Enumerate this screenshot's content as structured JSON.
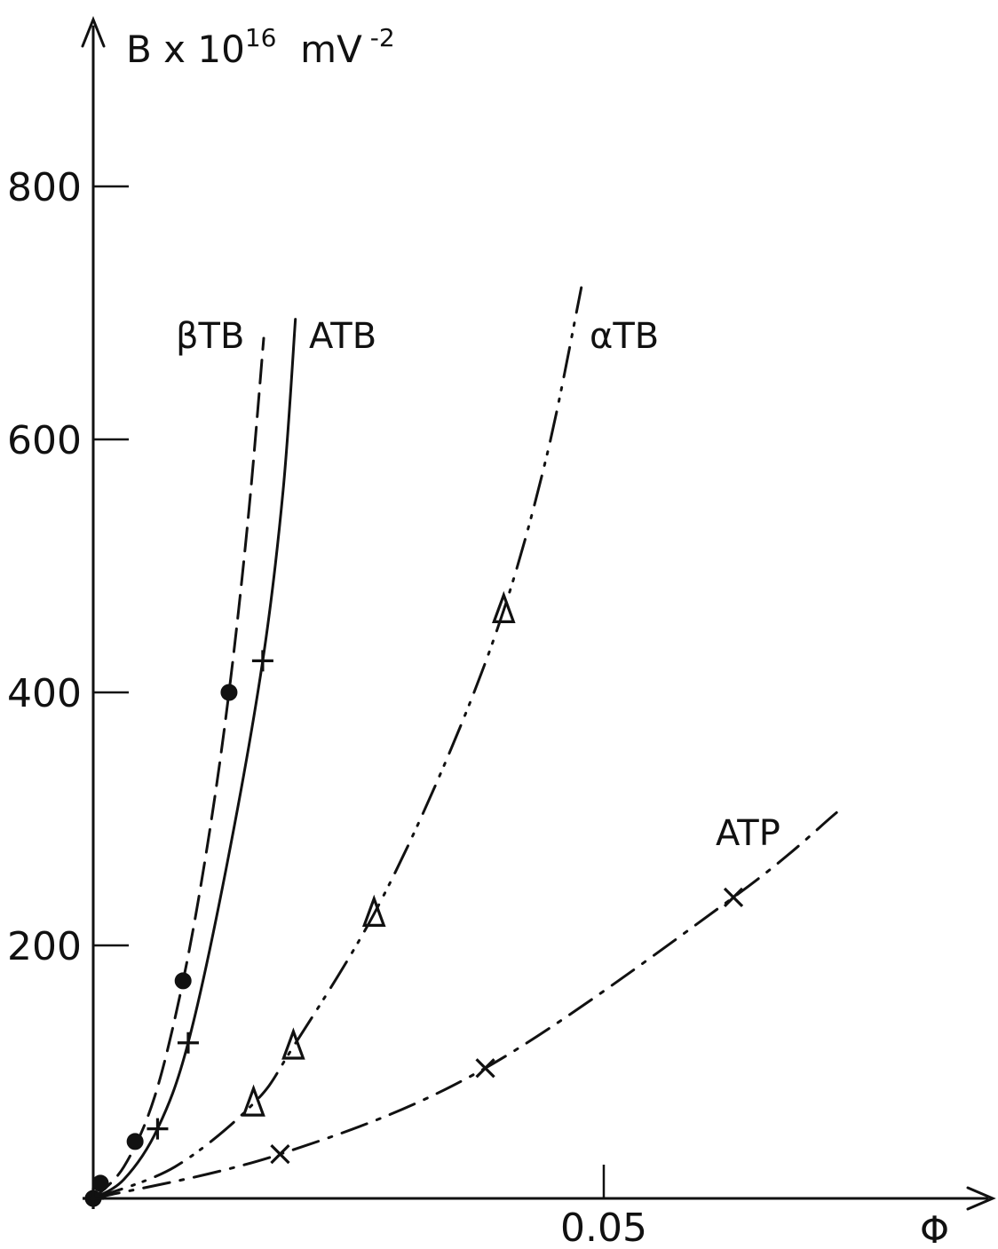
{
  "chart_data": {
    "type": "line",
    "title": "",
    "xlabel": "Φ",
    "ylabel": "B x 10^16 mV^-2",
    "ylabel_parts": {
      "base": "B x 10",
      "exp": "16",
      "unit": " mV",
      "unit_exp": "-2"
    },
    "xlim": [
      0,
      0.0745
    ],
    "ylim": [
      0,
      900
    ],
    "x_ticks": [
      {
        "value": 0.05,
        "label": "0.05"
      }
    ],
    "y_ticks": [
      {
        "value": 200,
        "label": "200"
      },
      {
        "value": 400,
        "label": "400"
      },
      {
        "value": 600,
        "label": "600"
      },
      {
        "value": 800,
        "label": "800"
      }
    ],
    "grid": false,
    "legend": "none",
    "series": [
      {
        "name": "βTB",
        "line_style": "dashed",
        "marker": "filled-circle",
        "points": [
          [
            0,
            0
          ],
          [
            0.0007,
            12
          ],
          [
            0.0041,
            45
          ],
          [
            0.0088,
            172
          ],
          [
            0.0133,
            400
          ]
        ],
        "curve": [
          [
            0,
            0
          ],
          [
            0.003,
            25
          ],
          [
            0.006,
            80
          ],
          [
            0.0088,
            172
          ],
          [
            0.0112,
            280
          ],
          [
            0.0133,
            400
          ],
          [
            0.0152,
            540
          ],
          [
            0.0167,
            680
          ]
        ]
      },
      {
        "name": "ATB",
        "line_style": "solid",
        "marker": "plus",
        "points": [
          [
            0,
            0
          ],
          [
            0.0063,
            55
          ],
          [
            0.0093,
            123
          ],
          [
            0.0166,
            425
          ]
        ],
        "curve": [
          [
            0,
            0
          ],
          [
            0.003,
            15
          ],
          [
            0.0063,
            55
          ],
          [
            0.0093,
            123
          ],
          [
            0.013,
            260
          ],
          [
            0.0166,
            425
          ],
          [
            0.0186,
            560
          ],
          [
            0.0198,
            695
          ]
        ]
      },
      {
        "name": "αTB",
        "line_style": "dash-dot-dot",
        "marker": "triangle",
        "points": [
          [
            0.0157,
            75
          ],
          [
            0.0196,
            120
          ],
          [
            0.0275,
            225
          ],
          [
            0.0402,
            465
          ]
        ],
        "curve": [
          [
            0,
            0
          ],
          [
            0.008,
            25
          ],
          [
            0.0157,
            75
          ],
          [
            0.0196,
            120
          ],
          [
            0.0275,
            225
          ],
          [
            0.0345,
            345
          ],
          [
            0.0402,
            465
          ],
          [
            0.0445,
            590
          ],
          [
            0.0478,
            720
          ]
        ]
      },
      {
        "name": "ATP",
        "line_style": "dash-dot",
        "marker": "x",
        "points": [
          [
            0.0183,
            35
          ],
          [
            0.0384,
            103
          ],
          [
            0.0627,
            238
          ]
        ],
        "curve": [
          [
            0,
            0
          ],
          [
            0.0183,
            35
          ],
          [
            0.0384,
            103
          ],
          [
            0.0627,
            238
          ],
          [
            0.0728,
            305
          ]
        ]
      }
    ]
  }
}
